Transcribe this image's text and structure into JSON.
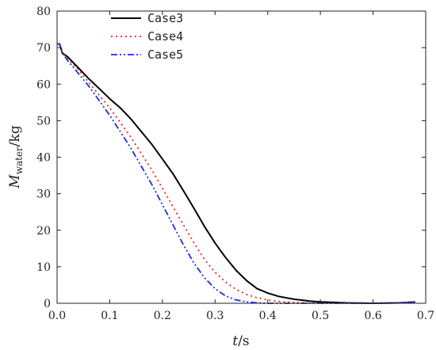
{
  "chart_data": {
    "type": "line",
    "title": "",
    "xlabel_var": "t",
    "xlabel_unit": "/s",
    "ylabel_var": "M",
    "ylabel_sub": "water",
    "ylabel_unit": "/kg",
    "xlim": [
      0.0,
      0.7
    ],
    "ylim": [
      0,
      80
    ],
    "xticks": [
      "0.0",
      "0.1",
      "0.2",
      "0.3",
      "0.4",
      "0.5",
      "0.6",
      "0.7"
    ],
    "yticks": [
      "0",
      "10",
      "20",
      "30",
      "40",
      "50",
      "60",
      "70",
      "80"
    ],
    "grid": false,
    "legend_position": "top-center",
    "series": [
      {
        "name": "Case3",
        "color": "#000000",
        "style": "solid",
        "x": [
          0.0,
          0.005,
          0.01,
          0.02,
          0.04,
          0.06,
          0.08,
          0.1,
          0.12,
          0.14,
          0.16,
          0.18,
          0.2,
          0.22,
          0.24,
          0.26,
          0.28,
          0.3,
          0.32,
          0.34,
          0.36,
          0.38,
          0.4,
          0.42,
          0.45,
          0.48,
          0.5,
          0.55,
          0.6,
          0.65,
          0.68
        ],
        "y": [
          71.0,
          71.0,
          68.5,
          67.5,
          64.5,
          61.5,
          58.8,
          56.0,
          53.5,
          50.5,
          47.0,
          43.5,
          39.5,
          35.5,
          30.8,
          26.0,
          21.0,
          16.5,
          12.5,
          9.0,
          6.2,
          4.0,
          2.8,
          1.9,
          1.1,
          0.6,
          0.4,
          0.1,
          0.0,
          0.1,
          0.4
        ]
      },
      {
        "name": "Case4",
        "color": "#e8261c",
        "style": "dotted",
        "x": [
          0.0,
          0.005,
          0.01,
          0.02,
          0.04,
          0.06,
          0.08,
          0.1,
          0.12,
          0.14,
          0.16,
          0.18,
          0.2,
          0.22,
          0.24,
          0.26,
          0.28,
          0.3,
          0.32,
          0.34,
          0.36,
          0.38,
          0.4,
          0.42,
          0.45,
          0.5,
          0.55,
          0.6,
          0.65,
          0.68
        ],
        "y": [
          71.0,
          71.0,
          68.5,
          67.0,
          64.0,
          60.5,
          57.0,
          53.5,
          49.5,
          45.5,
          41.0,
          36.5,
          31.5,
          26.5,
          21.5,
          16.5,
          12.0,
          8.5,
          5.8,
          3.8,
          2.4,
          1.5,
          0.9,
          0.5,
          0.2,
          0.0,
          0.0,
          0.0,
          0.1,
          0.3
        ]
      },
      {
        "name": "Case5",
        "color": "#1f2fd6",
        "style": "dashdot",
        "x": [
          0.0,
          0.005,
          0.01,
          0.02,
          0.04,
          0.06,
          0.08,
          0.1,
          0.12,
          0.14,
          0.16,
          0.18,
          0.2,
          0.22,
          0.24,
          0.26,
          0.28,
          0.3,
          0.32,
          0.34,
          0.36,
          0.38,
          0.4,
          0.45,
          0.5,
          0.55,
          0.6,
          0.65,
          0.68
        ],
        "y": [
          71.0,
          71.0,
          68.5,
          66.5,
          63.0,
          59.5,
          55.5,
          51.5,
          47.0,
          42.5,
          37.5,
          32.5,
          27.0,
          21.5,
          16.0,
          11.0,
          7.0,
          4.0,
          2.0,
          0.9,
          0.4,
          0.1,
          0.0,
          0.0,
          0.0,
          0.0,
          0.0,
          0.1,
          0.3
        ]
      }
    ]
  }
}
